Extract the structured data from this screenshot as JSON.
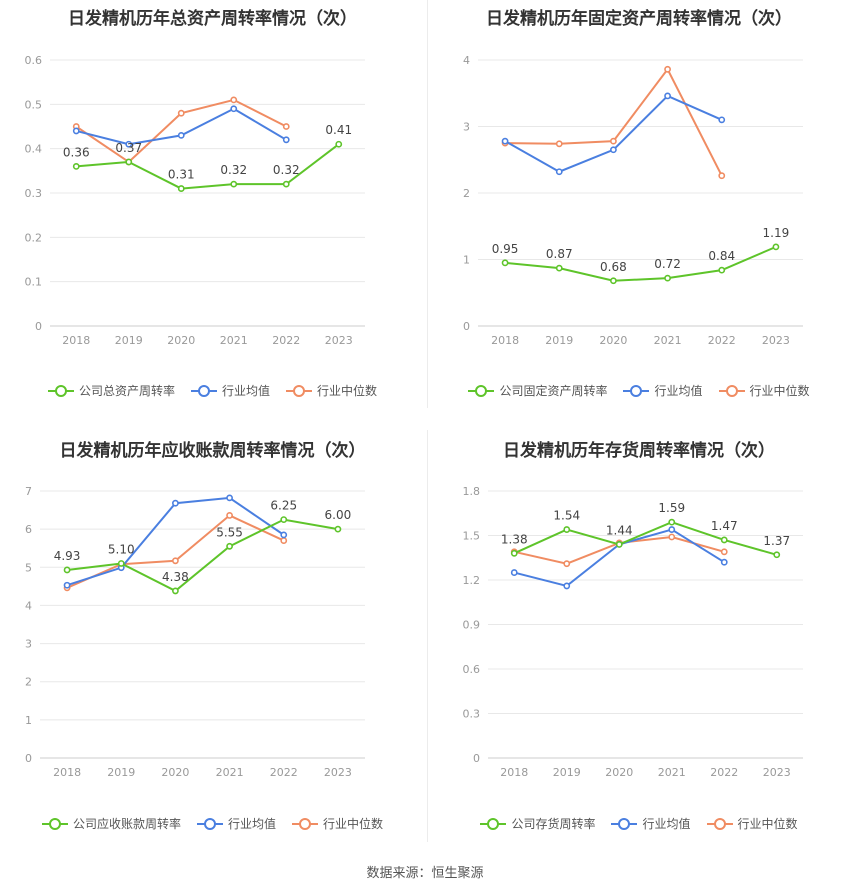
{
  "colors": {
    "company": "#5ec42a",
    "avg": "#4a7fe0",
    "median": "#f08c62"
  },
  "legend_shared": {
    "avg": "行业均值",
    "median": "行业中位数"
  },
  "source_text": "数据来源：恒生聚源",
  "chart_data": [
    {
      "type": "line",
      "title": "日发精机历年总资产周转率情况（次）",
      "categories": [
        "2018",
        "2019",
        "2020",
        "2021",
        "2022",
        "2023"
      ],
      "ylim": [
        0,
        0.6
      ],
      "yticks": [
        "0",
        "0.1",
        "0.2",
        "0.3",
        "0.4",
        "0.5",
        "0.6"
      ],
      "grid": true,
      "legend_position": "bottom",
      "series": [
        {
          "name": "公司总资产周转率",
          "key": "company",
          "values": [
            0.36,
            0.37,
            0.31,
            0.32,
            0.32,
            0.41
          ],
          "labels": [
            "0.36",
            "0.37",
            "0.31",
            "0.32",
            "0.32",
            "0.41"
          ]
        },
        {
          "name": "行业均值",
          "key": "avg",
          "values": [
            0.44,
            0.41,
            0.43,
            0.49,
            0.42,
            null
          ]
        },
        {
          "name": "行业中位数",
          "key": "median",
          "values": [
            0.45,
            0.37,
            0.48,
            0.51,
            0.45,
            null
          ]
        }
      ]
    },
    {
      "type": "line",
      "title": "日发精机历年固定资产周转率情况（次）",
      "categories": [
        "2018",
        "2019",
        "2020",
        "2021",
        "2022",
        "2023"
      ],
      "ylim": [
        0,
        4
      ],
      "yticks": [
        "0",
        "1",
        "2",
        "3",
        "4"
      ],
      "grid": true,
      "legend_position": "bottom",
      "series": [
        {
          "name": "公司固定资产周转率",
          "key": "company",
          "values": [
            0.95,
            0.87,
            0.68,
            0.72,
            0.84,
            1.19
          ],
          "labels": [
            "0.95",
            "0.87",
            "0.68",
            "0.72",
            "0.84",
            "1.19"
          ]
        },
        {
          "name": "行业均值",
          "key": "avg",
          "values": [
            2.78,
            2.32,
            2.65,
            3.46,
            3.1,
            null
          ]
        },
        {
          "name": "行业中位数",
          "key": "median",
          "values": [
            2.75,
            2.74,
            2.78,
            3.86,
            2.26,
            null
          ]
        }
      ]
    },
    {
      "type": "line",
      "title": "日发精机历年应收账款周转率情况（次）",
      "categories": [
        "2018",
        "2019",
        "2020",
        "2021",
        "2022",
        "2023"
      ],
      "ylim": [
        0,
        7
      ],
      "yticks": [
        "0",
        "1",
        "2",
        "3",
        "4",
        "5",
        "6",
        "7"
      ],
      "grid": true,
      "legend_position": "bottom",
      "series": [
        {
          "name": "公司应收账款周转率",
          "key": "company",
          "values": [
            4.93,
            5.1,
            4.38,
            5.55,
            6.25,
            6.0
          ],
          "labels": [
            "4.93",
            "5.10",
            "4.38",
            "5.55",
            "6.25",
            "6.00"
          ]
        },
        {
          "name": "行业均值",
          "key": "avg",
          "values": [
            4.53,
            4.99,
            6.68,
            6.82,
            5.85,
            null
          ]
        },
        {
          "name": "行业中位数",
          "key": "median",
          "values": [
            4.46,
            5.08,
            5.17,
            6.36,
            5.7,
            null
          ]
        }
      ]
    },
    {
      "type": "line",
      "title": "日发精机历年存货周转率情况（次）",
      "categories": [
        "2018",
        "2019",
        "2020",
        "2021",
        "2022",
        "2023"
      ],
      "ylim": [
        0,
        1.8
      ],
      "yticks": [
        "0",
        "0.3",
        "0.6",
        "0.9",
        "1.2",
        "1.5",
        "1.8"
      ],
      "grid": true,
      "legend_position": "bottom",
      "series": [
        {
          "name": "公司存货周转率",
          "key": "company",
          "values": [
            1.38,
            1.54,
            1.44,
            1.59,
            1.47,
            1.37
          ],
          "labels": [
            "1.38",
            "1.54",
            "1.44",
            "1.59",
            "1.47",
            "1.37"
          ]
        },
        {
          "name": "行业均值",
          "key": "avg",
          "values": [
            1.25,
            1.16,
            1.44,
            1.54,
            1.32,
            null
          ]
        },
        {
          "name": "行业中位数",
          "key": "median",
          "values": [
            1.39,
            1.31,
            1.45,
            1.49,
            1.39,
            null
          ]
        }
      ]
    }
  ]
}
